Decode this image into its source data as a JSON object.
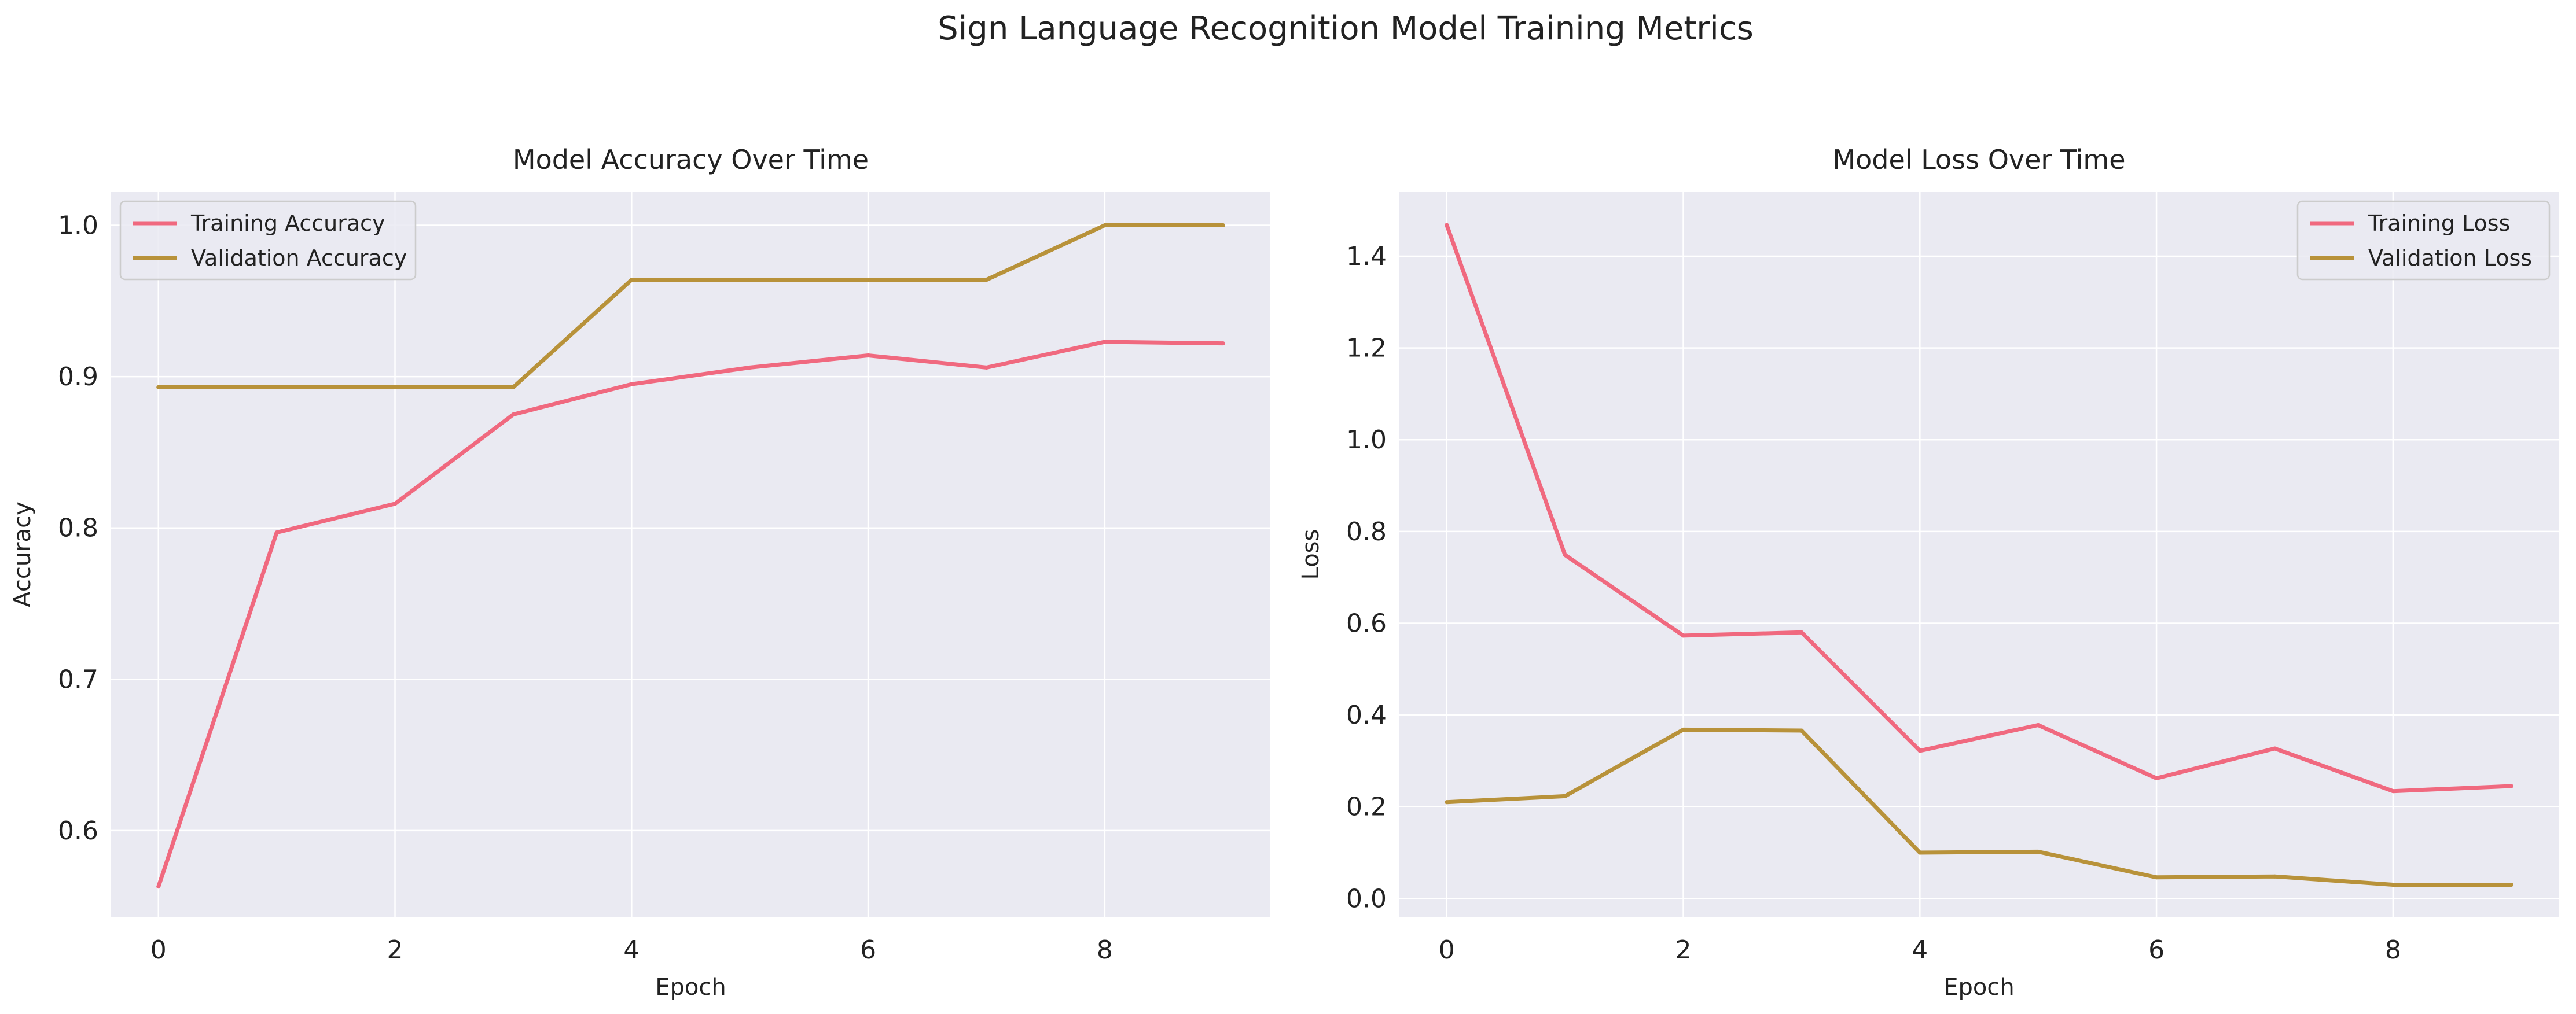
{
  "figure": {
    "suptitle": "Sign Language Recognition Model Training Metrics"
  },
  "colors": {
    "training": "#f0697f",
    "validation": "#b8923a",
    "plot_background": "#eaeaf2",
    "grid": "#ffffff"
  },
  "chart_data": [
    {
      "type": "line",
      "title": "Model Accuracy Over Time",
      "xlabel": "Epoch",
      "ylabel": "Accuracy",
      "xlim": [
        -0.4,
        9.4
      ],
      "ylim": [
        0.543,
        1.022
      ],
      "xticks": [
        0,
        2,
        4,
        6,
        8
      ],
      "yticks": [
        0.6,
        0.7,
        0.8,
        0.9,
        1.0
      ],
      "ytick_labels": [
        "0.6",
        "0.7",
        "0.8",
        "0.9",
        "1.0"
      ],
      "grid": true,
      "legend": "upper left",
      "x": [
        0,
        1,
        2,
        3,
        4,
        5,
        6,
        7,
        8,
        9
      ],
      "series": [
        {
          "name": "Training Accuracy",
          "color_key": "training",
          "values": [
            0.563,
            0.797,
            0.816,
            0.875,
            0.895,
            0.906,
            0.914,
            0.906,
            0.923,
            0.922
          ]
        },
        {
          "name": "Validation Accuracy",
          "color_key": "validation",
          "values": [
            0.893,
            0.893,
            0.893,
            0.893,
            0.964,
            0.964,
            0.964,
            0.964,
            1.0,
            1.0
          ]
        }
      ]
    },
    {
      "type": "line",
      "title": "Model Loss Over Time",
      "xlabel": "Epoch",
      "ylabel": "Loss",
      "xlim": [
        -0.4,
        9.4
      ],
      "ylim": [
        -0.04,
        1.54
      ],
      "xticks": [
        0,
        2,
        4,
        6,
        8
      ],
      "yticks": [
        0.0,
        0.2,
        0.4,
        0.6,
        0.8,
        1.0,
        1.2,
        1.4
      ],
      "ytick_labels": [
        "0.0",
        "0.2",
        "0.4",
        "0.6",
        "0.8",
        "1.0",
        "1.2",
        "1.4"
      ],
      "grid": true,
      "legend": "upper right",
      "x": [
        0,
        1,
        2,
        3,
        4,
        5,
        6,
        7,
        8,
        9
      ],
      "series": [
        {
          "name": "Training Loss",
          "color_key": "training",
          "values": [
            1.468,
            0.749,
            0.573,
            0.58,
            0.322,
            0.378,
            0.262,
            0.327,
            0.234,
            0.245
          ]
        },
        {
          "name": "Validation Loss",
          "color_key": "validation",
          "values": [
            0.21,
            0.223,
            0.368,
            0.366,
            0.1,
            0.102,
            0.046,
            0.048,
            0.03,
            0.03
          ]
        }
      ]
    }
  ]
}
